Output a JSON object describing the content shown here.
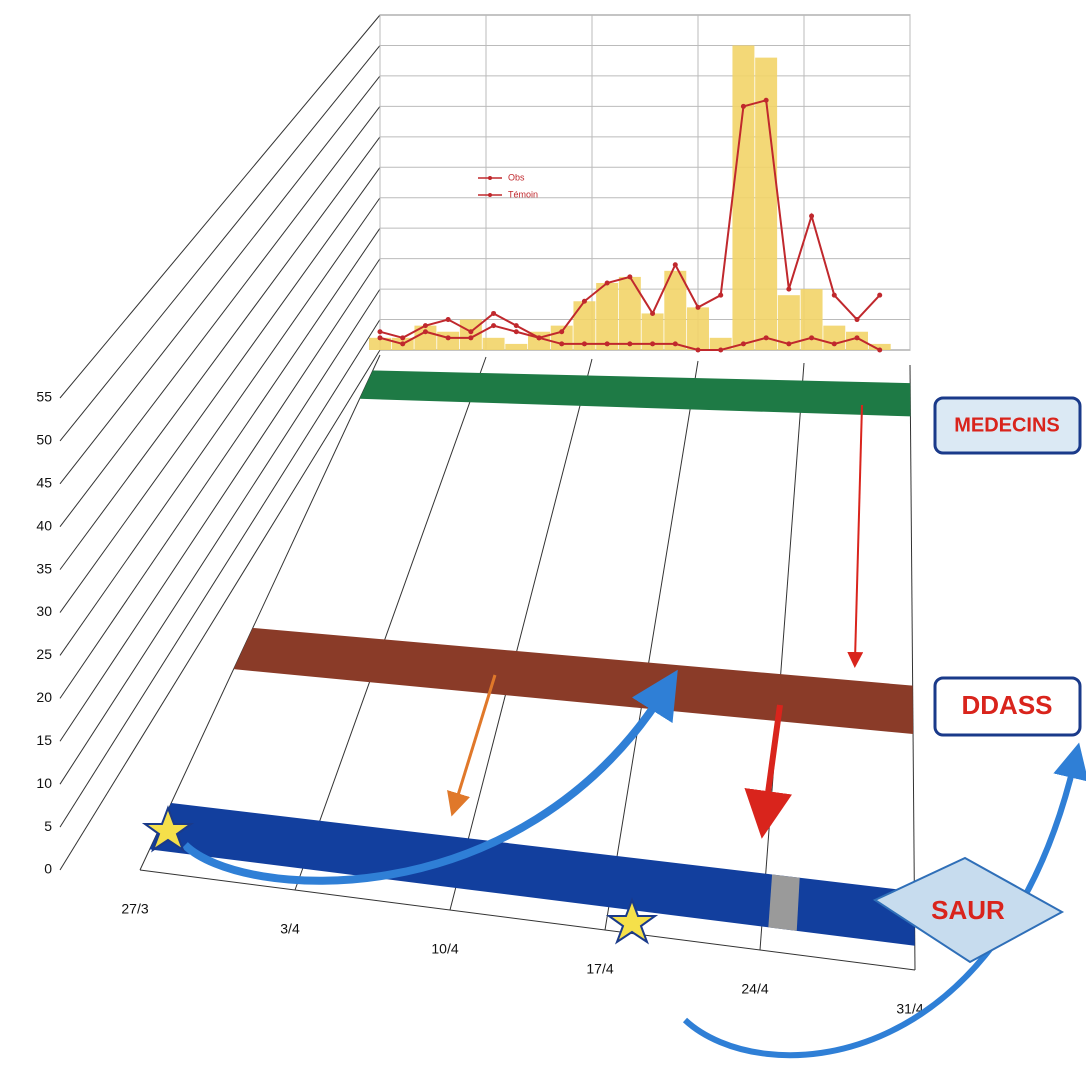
{
  "chart_data": {
    "type": "combo",
    "x": [
      0,
      1.5,
      3,
      4.5,
      6,
      7.5,
      9,
      10.5,
      12,
      13.5,
      15,
      16.5,
      18,
      19.5,
      21,
      22.5,
      24,
      25.5,
      27,
      28.5,
      30,
      31.5,
      33
    ],
    "series": [
      {
        "name": "Obs",
        "type": "line",
        "color": "#c0282d",
        "values": [
          3,
          2,
          4,
          5,
          3,
          6,
          4,
          2,
          3,
          8,
          11,
          12,
          6,
          14,
          7,
          9,
          40,
          41,
          10,
          22,
          9,
          5,
          9
        ]
      },
      {
        "name": "Témoin",
        "type": "line",
        "color": "#c0282d",
        "values": [
          2,
          1,
          3,
          2,
          2,
          4,
          3,
          2,
          1,
          1,
          1,
          1,
          1,
          1,
          0,
          0,
          1,
          2,
          1,
          2,
          1,
          2,
          0
        ]
      },
      {
        "type": "bar",
        "color": "#f2d468",
        "values": [
          2,
          2,
          4,
          3,
          5,
          2,
          1,
          3,
          4,
          8,
          11,
          12,
          6,
          13,
          7,
          2,
          50,
          48,
          9,
          10,
          4,
          3,
          1
        ]
      }
    ],
    "xlim": [
      0,
      35
    ],
    "xticks": [
      {
        "value": 0,
        "label": "27/3"
      },
      {
        "value": 7,
        "label": "3/4"
      },
      {
        "value": 14,
        "label": "10/4"
      },
      {
        "value": 21,
        "label": "17/4"
      },
      {
        "value": 28,
        "label": "24/4"
      },
      {
        "value": 35,
        "label": "31/4"
      }
    ],
    "ylim": [
      0,
      55
    ],
    "yticks": [
      0,
      5,
      10,
      15,
      20,
      25,
      30,
      35,
      40,
      45,
      50,
      55
    ],
    "grid": true,
    "annotations": [
      "MEDECINS",
      "DDASS",
      "SAUR"
    ]
  }
}
